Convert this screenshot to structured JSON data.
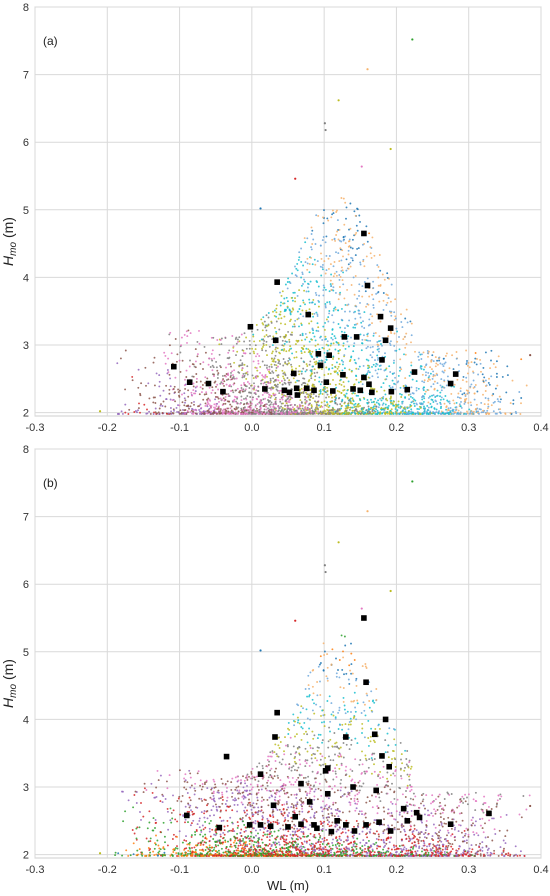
{
  "chart_data": [
    {
      "type": "scatter",
      "panel_label": "(a)",
      "xlabel": "",
      "ylabel_main": "H",
      "ylabel_sub": "mo",
      "ylabel_unit": " (m)",
      "xlim": [
        -0.3,
        0.4
      ],
      "ylim": [
        1.95,
        8
      ],
      "xticks": [
        -0.3,
        -0.2,
        -0.1,
        0.0,
        0.1,
        0.2,
        0.3,
        0.4
      ],
      "xtick_labels": [
        "-0.3",
        "-0.2",
        "-0.1",
        "0.0",
        "0.1",
        "0.2",
        "0.3",
        "0.4"
      ],
      "yticks": [
        2,
        3,
        4,
        5,
        6,
        7,
        8
      ],
      "ytick_labels": [
        "2",
        "3",
        "4",
        "5",
        "6",
        "7",
        "8"
      ],
      "grid": true,
      "cloud_outliers": [
        {
          "x": 0.222,
          "y": 7.52
        },
        {
          "x": 0.16,
          "y": 7.08
        },
        {
          "x": 0.12,
          "y": 6.62
        },
        {
          "x": 0.101,
          "y": 6.28
        },
        {
          "x": 0.102,
          "y": 6.18
        },
        {
          "x": 0.192,
          "y": 5.9
        },
        {
          "x": 0.152,
          "y": 5.64
        },
        {
          "x": 0.06,
          "y": 5.46
        },
        {
          "x": 0.012,
          "y": 5.02
        },
        {
          "x": -0.21,
          "y": 2.02
        },
        {
          "x": 0.385,
          "y": 2.85
        }
      ],
      "highlighted": [
        {
          "x": 0.155,
          "y": 4.65
        },
        {
          "x": 0.16,
          "y": 3.88
        },
        {
          "x": 0.035,
          "y": 3.93
        },
        {
          "x": 0.078,
          "y": 3.45
        },
        {
          "x": 0.178,
          "y": 3.42
        },
        {
          "x": -0.002,
          "y": 3.27
        },
        {
          "x": 0.192,
          "y": 3.25
        },
        {
          "x": 0.128,
          "y": 3.12
        },
        {
          "x": 0.145,
          "y": 3.12
        },
        {
          "x": 0.033,
          "y": 3.07
        },
        {
          "x": 0.185,
          "y": 3.07
        },
        {
          "x": 0.092,
          "y": 2.87
        },
        {
          "x": 0.107,
          "y": 2.85
        },
        {
          "x": -0.108,
          "y": 2.68
        },
        {
          "x": 0.095,
          "y": 2.7
        },
        {
          "x": 0.18,
          "y": 2.78
        },
        {
          "x": 0.058,
          "y": 2.58
        },
        {
          "x": 0.126,
          "y": 2.56
        },
        {
          "x": 0.155,
          "y": 2.52
        },
        {
          "x": 0.282,
          "y": 2.57
        },
        {
          "x": -0.086,
          "y": 2.45
        },
        {
          "x": -0.06,
          "y": 2.43
        },
        {
          "x": 0.103,
          "y": 2.45
        },
        {
          "x": 0.275,
          "y": 2.43
        },
        {
          "x": 0.162,
          "y": 2.42
        },
        {
          "x": 0.018,
          "y": 2.35
        },
        {
          "x": 0.045,
          "y": 2.33
        },
        {
          "x": 0.052,
          "y": 2.3
        },
        {
          "x": 0.062,
          "y": 2.36
        },
        {
          "x": 0.063,
          "y": 2.26
        },
        {
          "x": 0.076,
          "y": 2.36
        },
        {
          "x": 0.086,
          "y": 2.33
        },
        {
          "x": 0.112,
          "y": 2.32
        },
        {
          "x": 0.14,
          "y": 2.35
        },
        {
          "x": 0.15,
          "y": 2.33
        },
        {
          "x": 0.166,
          "y": 2.3
        },
        {
          "x": 0.193,
          "y": 2.31
        },
        {
          "x": 0.215,
          "y": 2.34
        },
        {
          "x": -0.04,
          "y": 2.31
        },
        {
          "x": 0.225,
          "y": 2.6
        }
      ]
    },
    {
      "type": "scatter",
      "panel_label": "(b)",
      "xlabel": "WL (m)",
      "ylabel_main": "H",
      "ylabel_sub": "mo",
      "ylabel_unit": " (m)",
      "xlim": [
        -0.3,
        0.4
      ],
      "ylim": [
        1.95,
        8
      ],
      "xticks": [
        -0.3,
        -0.2,
        -0.1,
        0.0,
        0.1,
        0.2,
        0.3,
        0.4
      ],
      "xtick_labels": [
        "-0.3",
        "-0.2",
        "-0.1",
        "0.0",
        "0.1",
        "0.2",
        "0.3",
        "0.4"
      ],
      "yticks": [
        2,
        3,
        4,
        5,
        6,
        7,
        8
      ],
      "ytick_labels": [
        "2",
        "3",
        "4",
        "5",
        "6",
        "7",
        "8"
      ],
      "grid": true,
      "cloud_outliers": [
        {
          "x": 0.222,
          "y": 7.52
        },
        {
          "x": 0.16,
          "y": 7.08
        },
        {
          "x": 0.12,
          "y": 6.62
        },
        {
          "x": 0.101,
          "y": 6.28
        },
        {
          "x": 0.102,
          "y": 6.18
        },
        {
          "x": 0.192,
          "y": 5.9
        },
        {
          "x": 0.152,
          "y": 5.64
        },
        {
          "x": 0.06,
          "y": 5.46
        },
        {
          "x": 0.012,
          "y": 5.02
        },
        {
          "x": -0.21,
          "y": 2.02
        },
        {
          "x": 0.385,
          "y": 2.72
        }
      ],
      "highlighted": [
        {
          "x": 0.155,
          "y": 5.5
        },
        {
          "x": 0.158,
          "y": 4.55
        },
        {
          "x": 0.035,
          "y": 4.1
        },
        {
          "x": 0.185,
          "y": 4.0
        },
        {
          "x": 0.032,
          "y": 3.74
        },
        {
          "x": 0.13,
          "y": 3.74
        },
        {
          "x": 0.17,
          "y": 3.78
        },
        {
          "x": -0.035,
          "y": 3.45
        },
        {
          "x": 0.18,
          "y": 3.46
        },
        {
          "x": 0.105,
          "y": 3.28
        },
        {
          "x": 0.102,
          "y": 3.24
        },
        {
          "x": 0.19,
          "y": 3.3
        },
        {
          "x": 0.012,
          "y": 3.19
        },
        {
          "x": 0.068,
          "y": 3.05
        },
        {
          "x": 0.14,
          "y": 3.0
        },
        {
          "x": 0.172,
          "y": 2.95
        },
        {
          "x": 0.105,
          "y": 2.9
        },
        {
          "x": 0.03,
          "y": 2.73
        },
        {
          "x": 0.08,
          "y": 2.78
        },
        {
          "x": -0.09,
          "y": 2.58
        },
        {
          "x": 0.06,
          "y": 2.56
        },
        {
          "x": 0.118,
          "y": 2.5
        },
        {
          "x": 0.21,
          "y": 2.68
        },
        {
          "x": 0.328,
          "y": 2.61
        },
        {
          "x": 0.228,
          "y": 2.62
        },
        {
          "x": -0.003,
          "y": 2.44
        },
        {
          "x": 0.012,
          "y": 2.44
        },
        {
          "x": 0.026,
          "y": 2.42
        },
        {
          "x": 0.05,
          "y": 2.41
        },
        {
          "x": 0.068,
          "y": 2.45
        },
        {
          "x": 0.086,
          "y": 2.44
        },
        {
          "x": 0.09,
          "y": 2.39
        },
        {
          "x": 0.13,
          "y": 2.44
        },
        {
          "x": 0.158,
          "y": 2.44
        },
        {
          "x": 0.176,
          "y": 2.48
        },
        {
          "x": 0.215,
          "y": 2.5
        },
        {
          "x": 0.232,
          "y": 2.55
        },
        {
          "x": 0.275,
          "y": 2.45
        },
        {
          "x": -0.045,
          "y": 2.4
        },
        {
          "x": 0.142,
          "y": 2.35
        },
        {
          "x": 0.192,
          "y": 2.35
        },
        {
          "x": 0.11,
          "y": 2.34
        }
      ]
    }
  ],
  "palette": [
    "#1f77b4",
    "#ff7f0e",
    "#2ca02c",
    "#d62728",
    "#9467bd",
    "#8c564b",
    "#e377c2",
    "#7f7f7f",
    "#bcbd22",
    "#17becf",
    "#6fa8dc",
    "#f6b26b"
  ]
}
